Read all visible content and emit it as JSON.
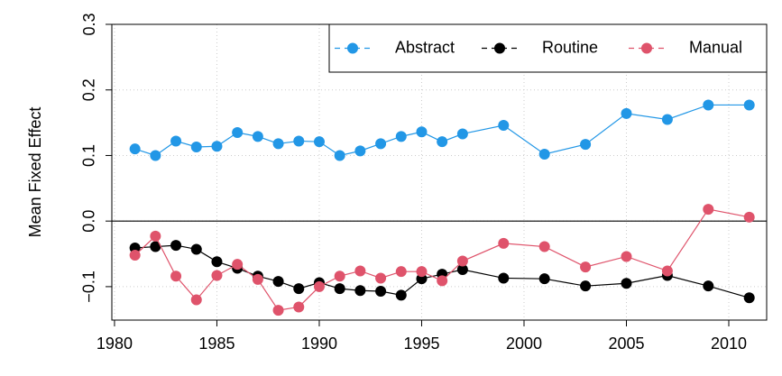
{
  "chart_data": {
    "type": "line",
    "y_label": "Mean Fixed Effect",
    "x": [
      1981,
      1982,
      1983,
      1984,
      1985,
      1986,
      1987,
      1988,
      1989,
      1990,
      1991,
      1992,
      1993,
      1994,
      1995,
      1996,
      1997,
      1999,
      2001,
      2003,
      2005,
      2007,
      2009,
      2011
    ],
    "series": [
      {
        "name": "Abstract",
        "color": "#2297E6",
        "values": [
          0.11,
          0.1,
          0.122,
          0.113,
          0.114,
          0.135,
          0.129,
          0.118,
          0.122,
          0.121,
          0.1,
          0.107,
          0.118,
          0.129,
          0.136,
          0.121,
          0.133,
          0.146,
          0.102,
          0.117,
          0.164,
          0.155,
          0.177,
          0.177
        ]
      },
      {
        "name": "Routine",
        "color": "#000000",
        "values": [
          -0.041,
          -0.039,
          -0.037,
          -0.043,
          -0.062,
          -0.072,
          -0.084,
          -0.092,
          -0.103,
          -0.094,
          -0.103,
          -0.106,
          -0.107,
          -0.113,
          -0.088,
          -0.081,
          -0.074,
          -0.087,
          -0.088,
          -0.099,
          -0.095,
          -0.083,
          -0.099,
          -0.117
        ]
      },
      {
        "name": "Manual",
        "color": "#DF536B",
        "values": [
          -0.052,
          -0.023,
          -0.084,
          -0.12,
          -0.083,
          -0.066,
          -0.089,
          -0.136,
          -0.131,
          -0.1,
          -0.084,
          -0.076,
          -0.087,
          -0.077,
          -0.077,
          -0.091,
          -0.061,
          -0.034,
          -0.039,
          -0.07,
          -0.054,
          -0.076,
          0.018,
          0.006
        ]
      }
    ],
    "xlim": [
      1979.87,
      2011.85
    ],
    "xticks": [
      1980,
      1985,
      1990,
      1995,
      2000,
      2005,
      2010
    ],
    "ylim": [
      -0.151,
      0.3
    ],
    "yticks": [
      {
        "value": -0.1,
        "label": "−0.1"
      },
      {
        "value": 0,
        "label": "0.0"
      },
      0.1,
      0.2,
      0.3
    ],
    "hline": 0,
    "grid": true,
    "legend": "topright"
  }
}
